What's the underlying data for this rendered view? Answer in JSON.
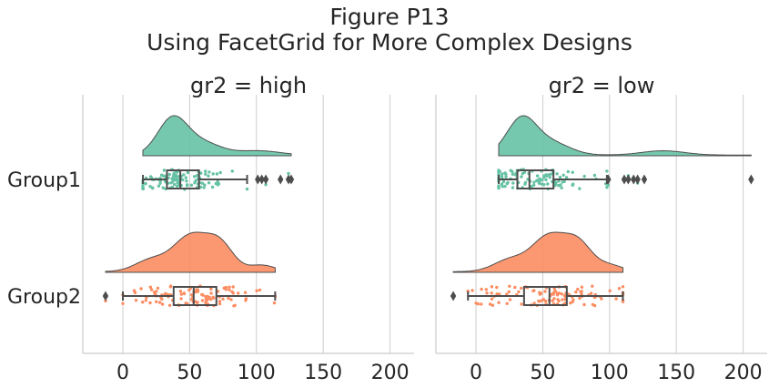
{
  "figure": {
    "title_line1": "Figure P13",
    "title_line2": "Using FacetGrid for More Complex Designs"
  },
  "colors": {
    "group1": "#66c2a5",
    "group2": "#fc8d62",
    "box_line": "#4d4d4d",
    "grid": "#cccccc",
    "axis": "#cccccc",
    "text": "#262626"
  },
  "chart_data": [
    {
      "type": "raincloud",
      "title": "gr2 = high",
      "categories": [
        "Group1",
        "Group2"
      ],
      "xticks": [
        0,
        50,
        100,
        150,
        200
      ],
      "xlim": [
        -30,
        218
      ],
      "grid": "vertical",
      "series": [
        {
          "name": "Group1",
          "box": {
            "whisker_low": 15,
            "q1": 33,
            "median": 43,
            "q3": 57,
            "whisker_high": 93
          },
          "outliers": [
            101,
            104,
            107,
            118,
            124,
            126
          ],
          "density_range": [
            15,
            126
          ],
          "density_peak": 37
        },
        {
          "name": "Group2",
          "box": {
            "whisker_low": 0,
            "q1": 38,
            "median": 53,
            "q3": 70,
            "whisker_high": 114
          },
          "outliers": [
            -13
          ],
          "density_range": [
            -13,
            114
          ],
          "density_peak": 51
        }
      ]
    },
    {
      "type": "raincloud",
      "title": "gr2 = low",
      "categories": [
        "Group1",
        "Group2"
      ],
      "xticks": [
        0,
        50,
        100,
        150,
        200
      ],
      "xlim": [
        -30,
        218
      ],
      "grid": "vertical",
      "series": [
        {
          "name": "Group1",
          "box": {
            "whisker_low": 17,
            "q1": 31,
            "median": 40,
            "q3": 58,
            "whisker_high": 98
          },
          "outliers": [
            99,
            111,
            114,
            118,
            121,
            126,
            206
          ],
          "density_range": [
            17,
            206
          ],
          "density_peak": 34
        },
        {
          "name": "Group2",
          "box": {
            "whisker_low": -6,
            "q1": 36,
            "median": 55,
            "q3": 68,
            "whisker_high": 110
          },
          "outliers": [
            -17
          ],
          "density_range": [
            -17,
            110
          ],
          "density_peak": 55
        }
      ]
    }
  ]
}
